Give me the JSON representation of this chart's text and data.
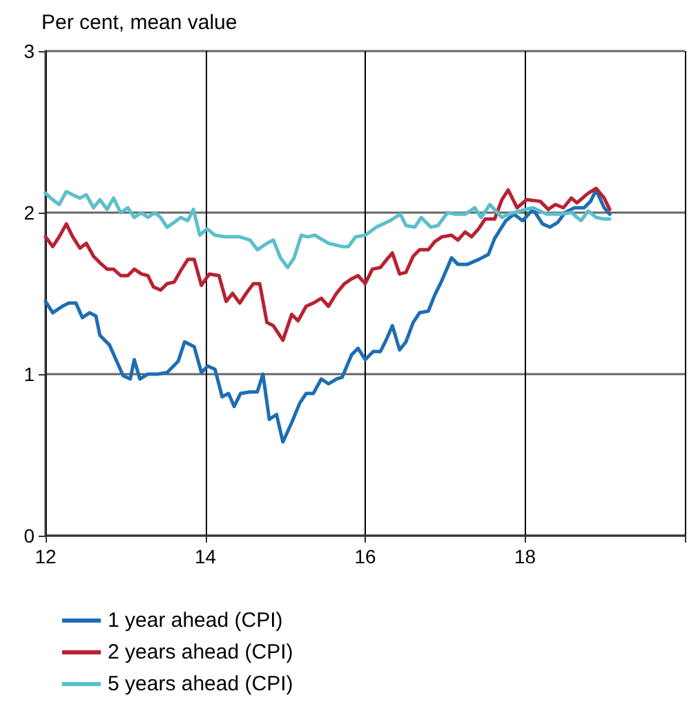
{
  "chart_data": {
    "type": "line",
    "subtitle": "Per cent, mean value",
    "xlim": [
      12,
      20
    ],
    "xticks": [
      12,
      14,
      16,
      18,
      {
        "value": 20,
        "label": null
      }
    ],
    "ylim": [
      0,
      3
    ],
    "yticks": [
      0,
      1,
      2,
      3
    ],
    "grid": true,
    "legend": "bottom left",
    "marker": "none",
    "line_style": "solid",
    "series": [
      {
        "name": "1 year ahead (CPI)",
        "color": "#1f6db3",
        "x": [
          12.0,
          12.09,
          12.21,
          12.29,
          12.38,
          12.46,
          12.55,
          12.63,
          12.68,
          12.8,
          12.89,
          12.97,
          13.06,
          13.11,
          13.18,
          13.28,
          13.4,
          13.52,
          13.66,
          13.74,
          13.86,
          13.95,
          14.03,
          14.12,
          14.21,
          14.29,
          14.36,
          14.44,
          14.56,
          14.65,
          14.72,
          14.8,
          14.89,
          14.97,
          15.08,
          15.18,
          15.26,
          15.35,
          15.45,
          15.54,
          15.64,
          15.71,
          15.83,
          15.91,
          16.0,
          16.1,
          16.19,
          16.27,
          16.34,
          16.43,
          16.51,
          16.6,
          16.68,
          16.79,
          16.87,
          16.96,
          17.08,
          17.16,
          17.28,
          17.42,
          17.54,
          17.62,
          17.76,
          17.86,
          17.97,
          18.1,
          18.22,
          18.31,
          18.41,
          18.5,
          18.62,
          18.74,
          18.82,
          18.89,
          18.99,
          19.06
        ],
        "values": [
          1.45,
          1.38,
          1.42,
          1.44,
          1.44,
          1.35,
          1.38,
          1.36,
          1.24,
          1.18,
          1.08,
          0.99,
          0.97,
          1.09,
          0.97,
          1.0,
          1.0,
          1.01,
          1.08,
          1.2,
          1.17,
          1.01,
          1.05,
          1.03,
          0.86,
          0.88,
          0.8,
          0.88,
          0.89,
          0.89,
          1.0,
          0.72,
          0.75,
          0.58,
          0.7,
          0.82,
          0.88,
          0.88,
          0.97,
          0.94,
          0.97,
          0.98,
          1.12,
          1.16,
          1.09,
          1.14,
          1.14,
          1.22,
          1.3,
          1.15,
          1.2,
          1.32,
          1.38,
          1.39,
          1.49,
          1.58,
          1.72,
          1.68,
          1.68,
          1.71,
          1.74,
          1.84,
          1.95,
          1.99,
          1.95,
          2.02,
          1.93,
          1.91,
          1.94,
          2.0,
          2.03,
          2.03,
          2.07,
          2.14,
          2.03,
          1.99
        ]
      },
      {
        "name": "2 years ahead (CPI)",
        "color": "#b82232",
        "x": [
          12.0,
          12.09,
          12.17,
          12.26,
          12.34,
          12.43,
          12.51,
          12.6,
          12.68,
          12.77,
          12.85,
          12.94,
          13.03,
          13.11,
          13.2,
          13.28,
          13.35,
          13.44,
          13.52,
          13.61,
          13.69,
          13.78,
          13.86,
          13.95,
          14.05,
          14.17,
          14.26,
          14.34,
          14.43,
          14.51,
          14.6,
          14.68,
          14.77,
          14.85,
          14.97,
          15.08,
          15.16,
          15.26,
          15.35,
          15.45,
          15.54,
          15.64,
          15.74,
          15.83,
          15.91,
          16.0,
          16.09,
          16.19,
          16.27,
          16.34,
          16.43,
          16.51,
          16.6,
          16.68,
          16.79,
          16.87,
          16.96,
          17.08,
          17.16,
          17.25,
          17.33,
          17.42,
          17.5,
          17.62,
          17.71,
          17.79,
          17.9,
          18.02,
          18.19,
          18.29,
          18.38,
          18.48,
          18.58,
          18.65,
          18.79,
          18.89,
          18.99,
          19.06
        ],
        "values": [
          1.85,
          1.79,
          1.85,
          1.93,
          1.85,
          1.78,
          1.81,
          1.73,
          1.69,
          1.65,
          1.65,
          1.61,
          1.61,
          1.65,
          1.62,
          1.61,
          1.54,
          1.52,
          1.56,
          1.57,
          1.64,
          1.71,
          1.71,
          1.55,
          1.62,
          1.61,
          1.45,
          1.5,
          1.44,
          1.5,
          1.56,
          1.56,
          1.32,
          1.3,
          1.21,
          1.37,
          1.33,
          1.42,
          1.44,
          1.47,
          1.42,
          1.5,
          1.56,
          1.59,
          1.61,
          1.56,
          1.65,
          1.66,
          1.71,
          1.75,
          1.62,
          1.63,
          1.73,
          1.77,
          1.77,
          1.82,
          1.85,
          1.86,
          1.83,
          1.88,
          1.85,
          1.9,
          1.96,
          1.96,
          2.08,
          2.14,
          2.03,
          2.08,
          2.07,
          2.02,
          2.05,
          2.03,
          2.09,
          2.06,
          2.12,
          2.15,
          2.09,
          2.02
        ]
      },
      {
        "name": "5 years ahead (CPI)",
        "color": "#5bbfcb",
        "x": [
          12.0,
          12.09,
          12.17,
          12.26,
          12.34,
          12.43,
          12.51,
          12.6,
          12.68,
          12.77,
          12.85,
          12.94,
          13.03,
          13.11,
          13.2,
          13.28,
          13.37,
          13.44,
          13.52,
          13.61,
          13.69,
          13.78,
          13.85,
          13.93,
          14.02,
          14.12,
          14.26,
          14.43,
          14.56,
          14.65,
          14.77,
          14.85,
          14.94,
          15.03,
          15.11,
          15.2,
          15.28,
          15.37,
          15.54,
          15.71,
          15.79,
          15.88,
          16.0,
          16.14,
          16.31,
          16.44,
          16.51,
          16.62,
          16.7,
          16.82,
          16.91,
          17.03,
          17.13,
          17.25,
          17.37,
          17.45,
          17.56,
          17.71,
          17.79,
          17.93,
          18.1,
          18.27,
          18.44,
          18.58,
          18.7,
          18.79,
          18.89,
          18.99,
          19.06
        ],
        "values": [
          2.12,
          2.08,
          2.05,
          2.13,
          2.11,
          2.09,
          2.11,
          2.03,
          2.08,
          2.02,
          2.09,
          2.0,
          2.03,
          1.97,
          2.0,
          1.97,
          2.0,
          1.97,
          1.91,
          1.94,
          1.97,
          1.95,
          2.02,
          1.86,
          1.9,
          1.86,
          1.85,
          1.85,
          1.83,
          1.77,
          1.81,
          1.83,
          1.72,
          1.66,
          1.72,
          1.86,
          1.85,
          1.86,
          1.81,
          1.79,
          1.79,
          1.85,
          1.86,
          1.91,
          1.95,
          1.99,
          1.92,
          1.91,
          1.97,
          1.91,
          1.92,
          2.0,
          1.99,
          1.99,
          2.03,
          1.97,
          2.05,
          1.97,
          1.99,
          2.01,
          2.03,
          1.99,
          1.99,
          2.0,
          1.95,
          2.01,
          1.97,
          1.96,
          1.96
        ]
      }
    ]
  }
}
